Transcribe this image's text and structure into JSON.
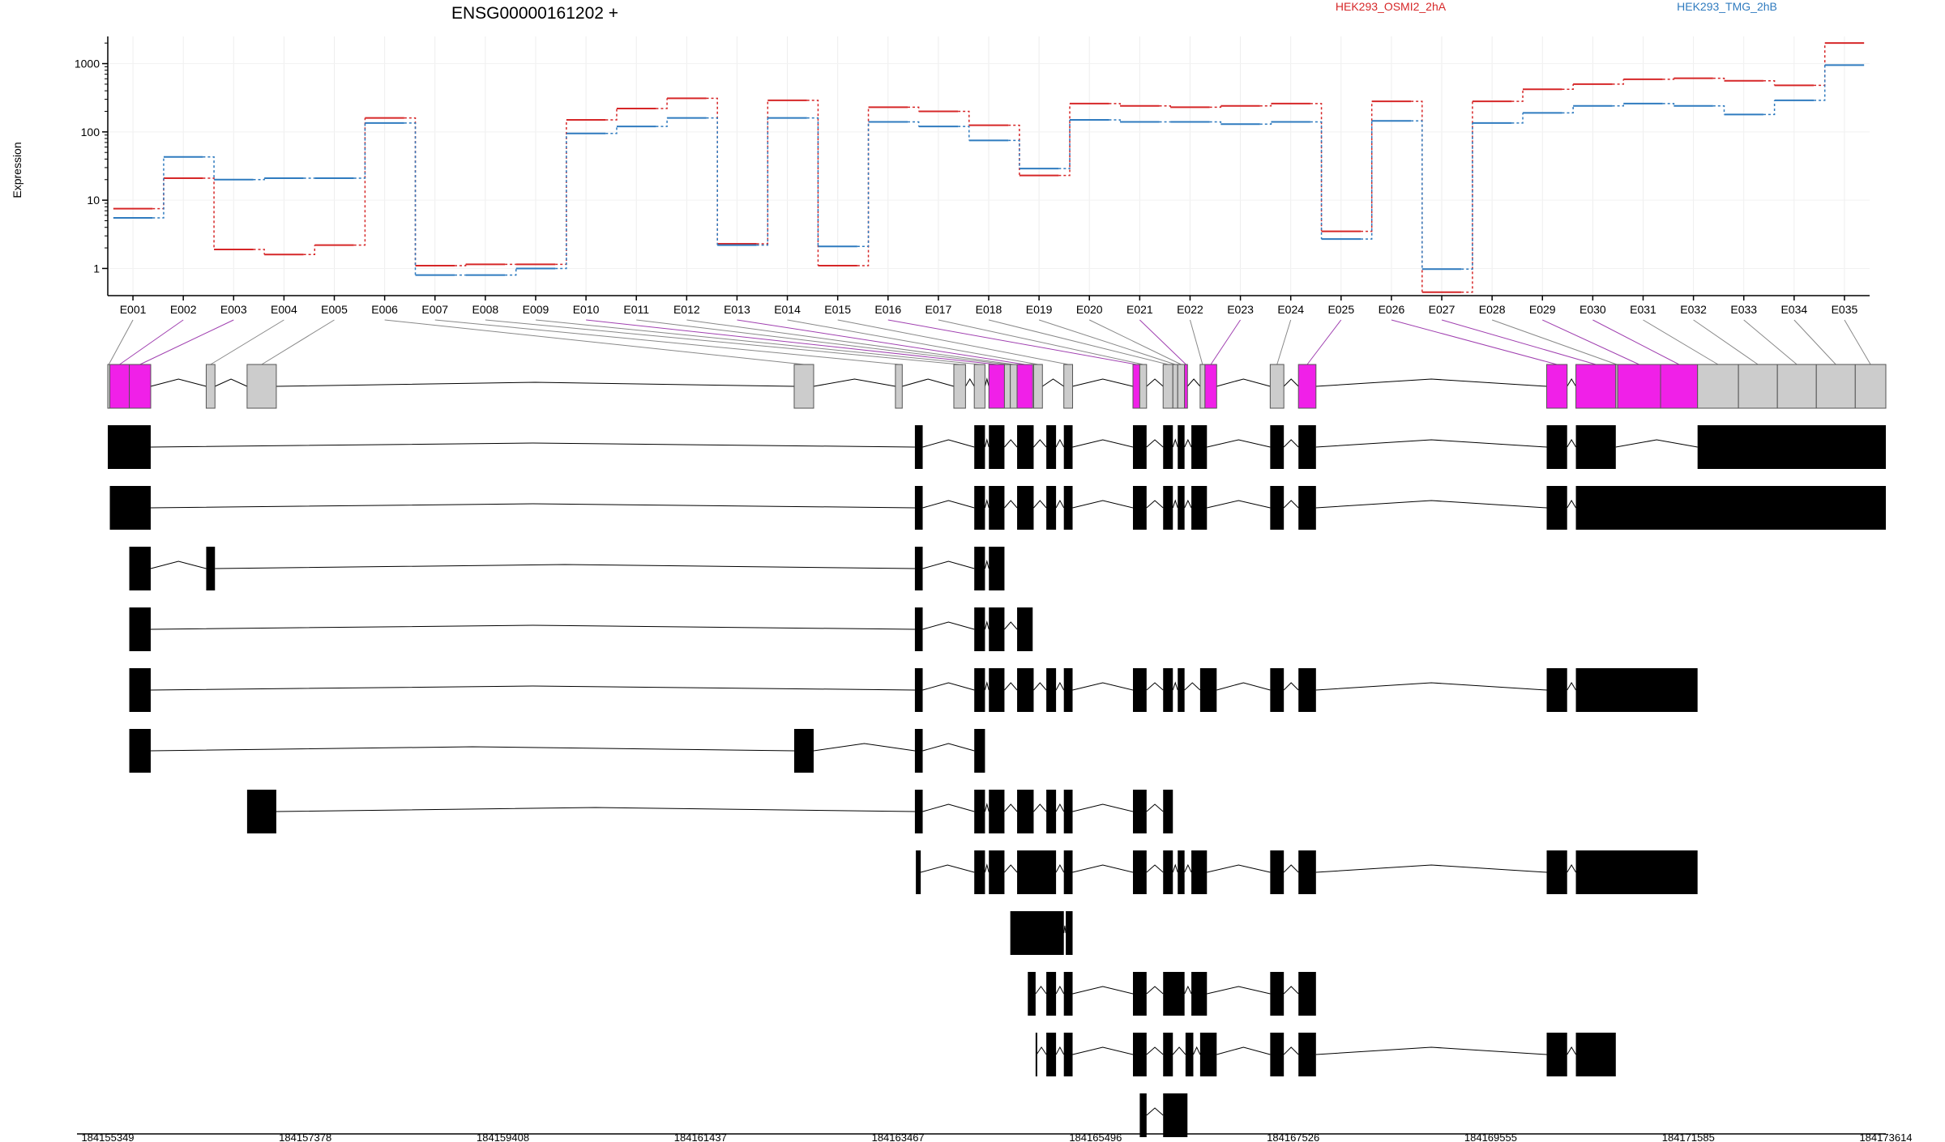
{
  "chart_data": {
    "type": "line",
    "title": "ENSG00000161202 +",
    "ylabel": "Expression",
    "y_scale": "log",
    "ylim": [
      0.4,
      2500
    ],
    "yticks": [
      1,
      10,
      100,
      1000
    ],
    "ytick_labels": [
      "1",
      "10",
      "100",
      "1000"
    ],
    "grid": true,
    "legend_position": "top-right",
    "categories": [
      "E001",
      "E002",
      "E003",
      "E004",
      "E005",
      "E006",
      "E007",
      "E008",
      "E009",
      "E010",
      "E011",
      "E012",
      "E013",
      "E014",
      "E015",
      "E016",
      "E017",
      "E018",
      "E019",
      "E020",
      "E021",
      "E022",
      "E023",
      "E024",
      "E025",
      "E026",
      "E027",
      "E028",
      "E029",
      "E030",
      "E031",
      "E032",
      "E033",
      "E034",
      "E035"
    ],
    "series": [
      {
        "name": "HEK293_OSMI2_2hA",
        "color": "#d62728",
        "values": [
          7.5,
          21,
          1.9,
          1.6,
          2.2,
          160,
          1.1,
          1.15,
          1.15,
          150,
          220,
          310,
          2.3,
          290,
          1.1,
          230,
          200,
          125,
          23,
          260,
          240,
          230,
          240,
          260,
          3.5,
          280,
          0.45,
          280,
          420,
          500,
          590,
          610,
          560,
          480,
          2000
        ]
      },
      {
        "name": "HEK293_TMG_2hB",
        "color": "#2f7bbf",
        "values": [
          5.5,
          43,
          20,
          21,
          21,
          135,
          0.8,
          0.8,
          1.0,
          95,
          120,
          160,
          2.2,
          160,
          2.1,
          140,
          120,
          75,
          29,
          150,
          140,
          140,
          130,
          140,
          2.7,
          145,
          0.98,
          135,
          190,
          240,
          260,
          240,
          180,
          290,
          950
        ]
      }
    ],
    "genome_axis": {
      "start": 184155349,
      "end": 184173614,
      "tick_labels": [
        "184155349",
        "184157378",
        "184159408",
        "184161437",
        "184163467",
        "184165496",
        "184167526",
        "184169555",
        "184171585",
        "184173614"
      ]
    },
    "exon_bins": [
      {
        "id": "E001",
        "start": 184155349,
        "end": 184155370,
        "sig": false
      },
      {
        "id": "E002",
        "start": 184155370,
        "end": 184155570,
        "sig": true
      },
      {
        "id": "E003",
        "start": 184155570,
        "end": 184155790,
        "sig": true
      },
      {
        "id": "E004",
        "start": 184156360,
        "end": 184156450,
        "sig": false
      },
      {
        "id": "E005",
        "start": 184156780,
        "end": 184157080,
        "sig": false
      },
      {
        "id": "E006",
        "start": 184162400,
        "end": 184162600,
        "sig": false
      },
      {
        "id": "E007",
        "start": 184163440,
        "end": 184163510,
        "sig": false
      },
      {
        "id": "E008",
        "start": 184164040,
        "end": 184164160,
        "sig": false
      },
      {
        "id": "E009",
        "start": 184164250,
        "end": 184164360,
        "sig": false
      },
      {
        "id": "E010",
        "start": 184164400,
        "end": 184164560,
        "sig": true
      },
      {
        "id": "E011",
        "start": 184164560,
        "end": 184164620,
        "sig": false
      },
      {
        "id": "E012",
        "start": 184164620,
        "end": 184164690,
        "sig": false
      },
      {
        "id": "E013",
        "start": 184164690,
        "end": 184164850,
        "sig": true
      },
      {
        "id": "E014",
        "start": 184164860,
        "end": 184164950,
        "sig": false
      },
      {
        "id": "E015",
        "start": 184165170,
        "end": 184165260,
        "sig": false
      },
      {
        "id": "E016",
        "start": 184165880,
        "end": 184165950,
        "sig": true
      },
      {
        "id": "E017",
        "start": 184165950,
        "end": 184166020,
        "sig": false
      },
      {
        "id": "E018",
        "start": 184166190,
        "end": 184166290,
        "sig": false
      },
      {
        "id": "E019",
        "start": 184166290,
        "end": 184166340,
        "sig": false
      },
      {
        "id": "E020",
        "start": 184166340,
        "end": 184166410,
        "sig": false
      },
      {
        "id": "E021",
        "start": 184166410,
        "end": 184166440,
        "sig": true
      },
      {
        "id": "E022",
        "start": 184166570,
        "end": 184166620,
        "sig": false
      },
      {
        "id": "E023",
        "start": 184166620,
        "end": 184166740,
        "sig": true
      },
      {
        "id": "E024",
        "start": 184167290,
        "end": 184167430,
        "sig": false
      },
      {
        "id": "E025",
        "start": 184167580,
        "end": 184167760,
        "sig": true
      },
      {
        "id": "E026",
        "start": 184170130,
        "end": 184170340,
        "sig": true
      },
      {
        "id": "E027",
        "start": 184170430,
        "end": 184170840,
        "sig": true
      },
      {
        "id": "E028",
        "start": 184170840,
        "end": 184170860,
        "sig": false
      },
      {
        "id": "E029",
        "start": 184170860,
        "end": 184171300,
        "sig": true
      },
      {
        "id": "E030",
        "start": 184171300,
        "end": 184171680,
        "sig": true
      },
      {
        "id": "E031",
        "start": 184171680,
        "end": 184172100,
        "sig": false
      },
      {
        "id": "E032",
        "start": 184172100,
        "end": 184172500,
        "sig": false
      },
      {
        "id": "E033",
        "start": 184172500,
        "end": 184172900,
        "sig": false
      },
      {
        "id": "E034",
        "start": 184172900,
        "end": 184173300,
        "sig": false
      },
      {
        "id": "E035",
        "start": 184173300,
        "end": 184173614,
        "sig": false
      }
    ],
    "transcripts": [
      {
        "exons": [
          [
            184155349,
            184155790
          ],
          [
            184163640,
            184163720
          ],
          [
            184164250,
            184164360
          ],
          [
            184164400,
            184164560
          ],
          [
            184164690,
            184164860
          ],
          [
            184164990,
            184165090
          ],
          [
            184165170,
            184165260
          ],
          [
            184165880,
            184166020
          ],
          [
            184166190,
            184166290
          ],
          [
            184166340,
            184166410
          ],
          [
            184166480,
            184166640
          ],
          [
            184167290,
            184167430
          ],
          [
            184167580,
            184167760
          ],
          [
            184170130,
            184170340
          ],
          [
            184170430,
            184170840
          ],
          [
            184171680,
            184173614
          ]
        ]
      },
      {
        "exons": [
          [
            184155370,
            184155790
          ],
          [
            184163640,
            184163720
          ],
          [
            184164250,
            184164360
          ],
          [
            184164400,
            184164560
          ],
          [
            184164690,
            184164860
          ],
          [
            184164990,
            184165090
          ],
          [
            184165170,
            184165260
          ],
          [
            184165880,
            184166020
          ],
          [
            184166190,
            184166290
          ],
          [
            184166340,
            184166410
          ],
          [
            184166480,
            184166640
          ],
          [
            184167290,
            184167430
          ],
          [
            184167580,
            184167760
          ],
          [
            184170130,
            184170340
          ],
          [
            184170430,
            184173614
          ]
        ]
      },
      {
        "exons": [
          [
            184155570,
            184155790
          ],
          [
            184156360,
            184156450
          ],
          [
            184163640,
            184163720
          ],
          [
            184164250,
            184164360
          ],
          [
            184164400,
            184164560
          ]
        ]
      },
      {
        "exons": [
          [
            184155570,
            184155790
          ],
          [
            184163640,
            184163720
          ],
          [
            184164250,
            184164360
          ],
          [
            184164400,
            184164560
          ],
          [
            184164690,
            184164850
          ]
        ]
      },
      {
        "exons": [
          [
            184155570,
            184155790
          ],
          [
            184163640,
            184163720
          ],
          [
            184164250,
            184164360
          ],
          [
            184164400,
            184164560
          ],
          [
            184164690,
            184164860
          ],
          [
            184164990,
            184165090
          ],
          [
            184165170,
            184165260
          ],
          [
            184165880,
            184166020
          ],
          [
            184166190,
            184166290
          ],
          [
            184166340,
            184166410
          ],
          [
            184166570,
            184166740
          ],
          [
            184167290,
            184167430
          ],
          [
            184167580,
            184167760
          ],
          [
            184170130,
            184170340
          ],
          [
            184170430,
            184171680
          ]
        ]
      },
      {
        "exons": [
          [
            184155570,
            184155790
          ],
          [
            184162400,
            184162600
          ],
          [
            184163640,
            184163720
          ],
          [
            184164250,
            184164360
          ]
        ]
      },
      {
        "exons": [
          [
            184156780,
            184157080
          ],
          [
            184163640,
            184163720
          ],
          [
            184164250,
            184164360
          ],
          [
            184164400,
            184164560
          ],
          [
            184164690,
            184164860
          ],
          [
            184164990,
            184165090
          ],
          [
            184165170,
            184165260
          ],
          [
            184165880,
            184166020
          ],
          [
            184166190,
            184166290
          ]
        ]
      },
      {
        "exons": [
          [
            184163650,
            184163700
          ],
          [
            184164250,
            184164360
          ],
          [
            184164400,
            184164560
          ],
          [
            184164690,
            184165090
          ],
          [
            184165170,
            184165260
          ],
          [
            184165880,
            184166020
          ],
          [
            184166190,
            184166290
          ],
          [
            184166340,
            184166410
          ],
          [
            184166480,
            184166640
          ],
          [
            184167290,
            184167430
          ],
          [
            184167580,
            184167760
          ],
          [
            184170130,
            184170340
          ],
          [
            184170430,
            184171680
          ]
        ]
      },
      {
        "exons": [
          [
            184164620,
            184165170
          ],
          [
            184165190,
            184165260
          ]
        ]
      },
      {
        "exons": [
          [
            184164800,
            184164880
          ],
          [
            184164990,
            184165090
          ],
          [
            184165170,
            184165260
          ],
          [
            184165880,
            184166020
          ],
          [
            184166190,
            184166410
          ],
          [
            184166480,
            184166640
          ],
          [
            184167290,
            184167430
          ],
          [
            184167580,
            184167760
          ]
        ]
      },
      {
        "exons": [
          [
            184164880,
            184164890
          ],
          [
            184164990,
            184165090
          ],
          [
            184165170,
            184165260
          ],
          [
            184165880,
            184166020
          ],
          [
            184166190,
            184166290
          ],
          [
            184166420,
            184166500
          ],
          [
            184166570,
            184166740
          ],
          [
            184167290,
            184167430
          ],
          [
            184167580,
            184167760
          ],
          [
            184170130,
            184170340
          ],
          [
            184170430,
            184170840
          ]
        ]
      },
      {
        "exons": [
          [
            184165950,
            184166020
          ],
          [
            184166190,
            184166440
          ]
        ]
      }
    ]
  }
}
